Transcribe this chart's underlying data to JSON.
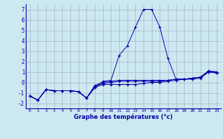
{
  "xlabel": "Graphe des températures (°c)",
  "hours": [
    0,
    1,
    2,
    3,
    4,
    5,
    6,
    7,
    8,
    9,
    10,
    11,
    12,
    13,
    14,
    15,
    16,
    17,
    18,
    19,
    20,
    21,
    22,
    23
  ],
  "line1": [
    -1.3,
    -1.7,
    -0.7,
    -0.8,
    -0.8,
    -0.8,
    -0.9,
    -1.5,
    -0.5,
    0.1,
    0.2,
    2.6,
    3.5,
    5.3,
    7.0,
    7.0,
    5.3,
    2.3,
    0.3,
    0.3,
    0.4,
    0.5,
    1.1,
    1.0
  ],
  "line2": [
    -1.3,
    -1.7,
    -0.7,
    -0.8,
    -0.8,
    -0.8,
    -0.9,
    -1.5,
    -0.5,
    -0.2,
    -0.2,
    -0.2,
    -0.2,
    -0.2,
    -0.1,
    0.0,
    0.0,
    0.1,
    0.2,
    0.3,
    0.3,
    0.4,
    1.0,
    0.9
  ],
  "line3": [
    -1.3,
    -1.7,
    -0.7,
    -0.8,
    -0.8,
    -0.8,
    -0.9,
    -1.5,
    -0.4,
    -0.1,
    0.0,
    0.1,
    0.1,
    0.1,
    0.1,
    0.1,
    0.1,
    0.2,
    0.3,
    0.3,
    0.4,
    0.5,
    1.0,
    0.9
  ],
  "line4": [
    -1.3,
    -1.7,
    -0.7,
    -0.8,
    -0.8,
    -0.8,
    -0.9,
    -1.5,
    -0.3,
    0.0,
    0.1,
    0.2,
    0.2,
    0.2,
    0.2,
    0.2,
    0.2,
    0.2,
    0.3,
    0.3,
    0.4,
    0.5,
    1.1,
    1.0
  ],
  "line_color": "#0000aa",
  "bg_color": "#cce8f0",
  "grid_color": "#99aabb",
  "ylim": [
    -2.5,
    7.5
  ],
  "xlim": [
    -0.5,
    23.5
  ]
}
